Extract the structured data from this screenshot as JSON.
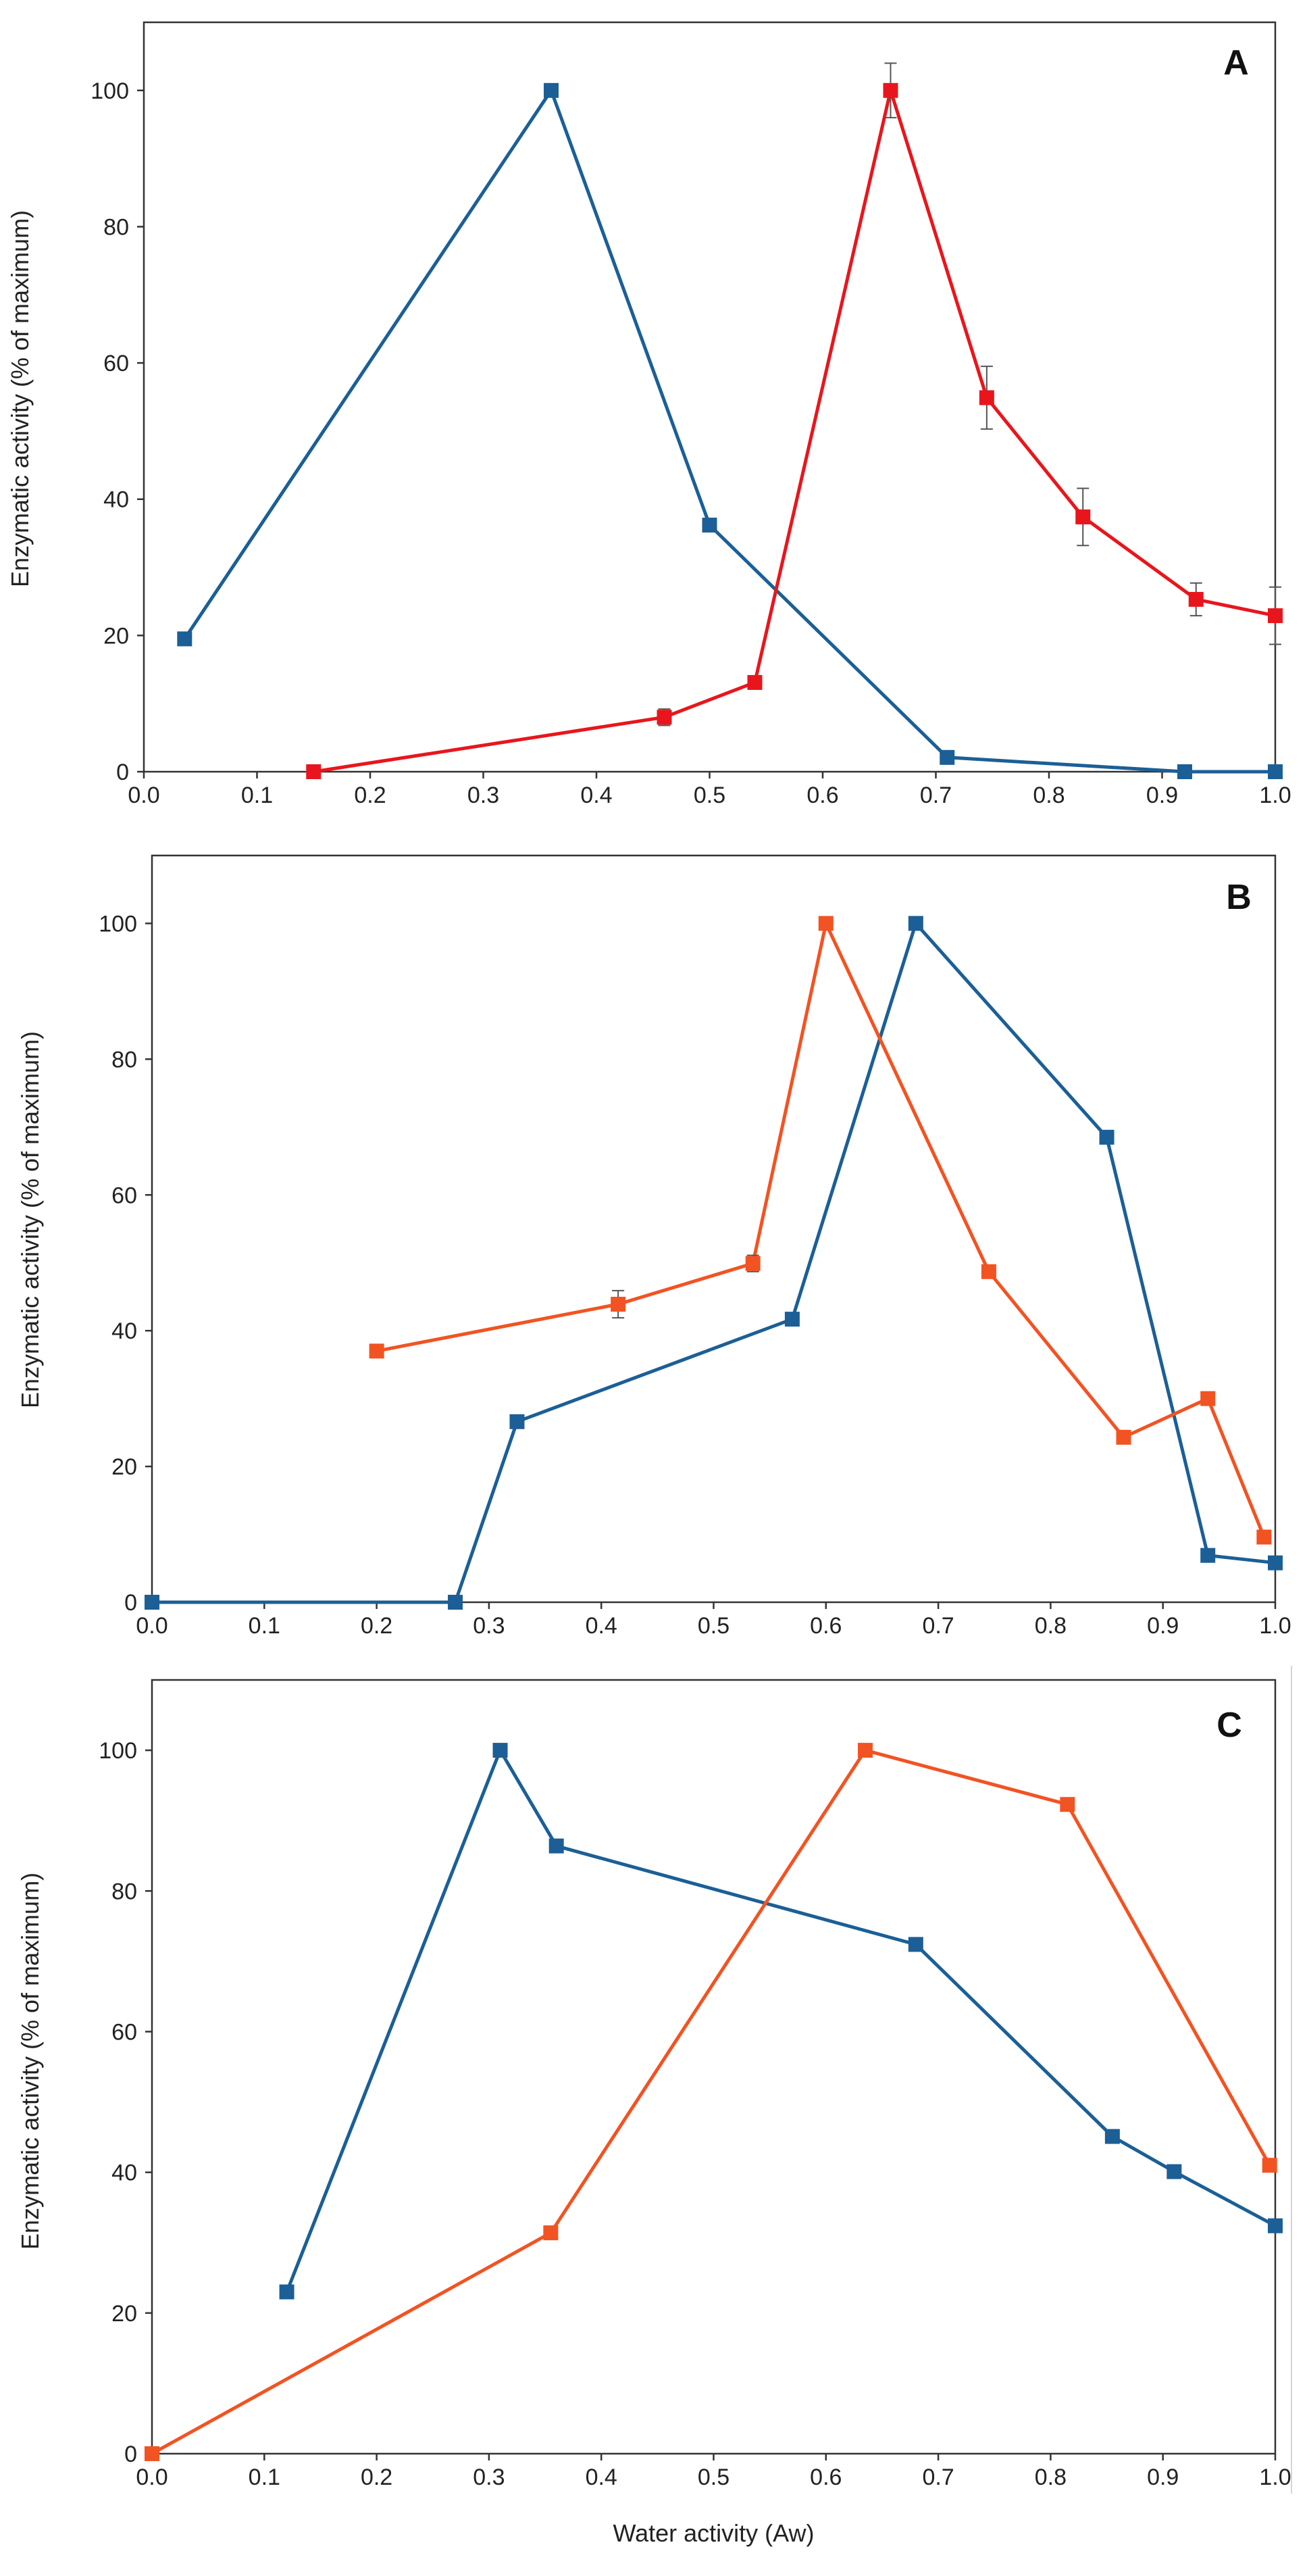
{
  "chart_data": [
    {
      "type": "line",
      "title": "A",
      "xlabel": "",
      "ylabel": "Enzymatic activity (% of maximum)",
      "xlim": [
        0.0,
        1.0
      ],
      "ylim": [
        0,
        110
      ],
      "xticks": [
        0.0,
        0.1,
        0.2,
        0.3,
        0.4,
        0.5,
        0.6,
        0.7,
        0.8,
        0.9,
        1.0
      ],
      "xtick_labels": [
        "0.0",
        "0.1",
        "0.2",
        "0.3",
        "0.4",
        "0.5",
        "0.6",
        "0.7",
        "0.8",
        "0.9",
        "1.0"
      ],
      "yticks": [
        0,
        20,
        40,
        60,
        80,
        100
      ],
      "ytick_labels": [
        "0",
        "20",
        "40",
        "60",
        "80",
        "100"
      ],
      "series": [
        {
          "name": "blue",
          "color": "#1b5f96",
          "x": [
            0.036,
            0.36,
            0.5,
            0.71,
            0.92,
            1.0
          ],
          "y": [
            19.5,
            100,
            36.2,
            2.1,
            0,
            0
          ],
          "err": [
            0,
            0,
            0,
            0,
            0,
            0
          ]
        },
        {
          "name": "red",
          "color": "#e8161c",
          "x": [
            0.15,
            0.46,
            0.54,
            0.66,
            0.745,
            0.83,
            0.93,
            1.0
          ],
          "y": [
            0,
            8.0,
            13.1,
            100,
            54.9,
            37.4,
            25.3,
            22.9
          ],
          "err": [
            0,
            1.2,
            0.8,
            4.0,
            4.6,
            4.2,
            2.4,
            4.2
          ]
        }
      ]
    },
    {
      "type": "line",
      "title": "B",
      "xlabel": "",
      "ylabel": "Enzymatic activity (% of maximum)",
      "xlim": [
        0.0,
        1.0
      ],
      "ylim": [
        0,
        110
      ],
      "xticks": [
        0.0,
        0.1,
        0.2,
        0.3,
        0.4,
        0.5,
        0.6,
        0.7,
        0.8,
        0.9,
        1.0
      ],
      "xtick_labels": [
        "0.0",
        "0.1",
        "0.2",
        "0.3",
        "0.4",
        "0.5",
        "0.6",
        "0.7",
        "0.8",
        "0.9",
        "1.0"
      ],
      "yticks": [
        0,
        20,
        40,
        60,
        80,
        100
      ],
      "ytick_labels": [
        "0",
        "20",
        "40",
        "60",
        "80",
        "100"
      ],
      "series": [
        {
          "name": "blue",
          "color": "#1b5f96",
          "x": [
            0.0,
            0.27,
            0.325,
            0.57,
            0.68,
            0.85,
            0.94,
            1.0
          ],
          "y": [
            0,
            0,
            26.6,
            41.7,
            100,
            68.5,
            6.9,
            5.8
          ],
          "err": [
            0,
            0,
            0,
            0,
            0,
            0,
            0,
            0
          ]
        },
        {
          "name": "orange",
          "color": "#f25322",
          "x": [
            0.2,
            0.415,
            0.535,
            0.6,
            0.745,
            0.865,
            0.94,
            0.99
          ],
          "y": [
            37.0,
            43.9,
            49.9,
            100,
            48.7,
            24.3,
            30.0,
            9.6
          ],
          "err": [
            0.8,
            2.0,
            1.2,
            0,
            0,
            0,
            0,
            0
          ]
        }
      ]
    },
    {
      "type": "line",
      "title": "C",
      "xlabel": "Water activity (Aw)",
      "ylabel": "Enzymatic activity (% of maximum)",
      "xlim": [
        0.0,
        1.0
      ],
      "ylim": [
        0,
        110
      ],
      "xticks": [
        0.0,
        0.1,
        0.2,
        0.3,
        0.4,
        0.5,
        0.6,
        0.7,
        0.8,
        0.9,
        1.0
      ],
      "xtick_labels": [
        "0.0",
        "0.1",
        "0.2",
        "0.3",
        "0.4",
        "0.5",
        "0.6",
        "0.7",
        "0.8",
        "0.9",
        "1.0"
      ],
      "yticks": [
        0,
        20,
        40,
        60,
        80,
        100
      ],
      "ytick_labels": [
        "0",
        "20",
        "40",
        "60",
        "80",
        "100"
      ],
      "series": [
        {
          "name": "blue",
          "color": "#1b5f96",
          "x": [
            0.12,
            0.31,
            0.36,
            0.68,
            0.855,
            0.91,
            1.0
          ],
          "y": [
            23.0,
            100,
            86.4,
            72.4,
            45.1,
            40.1,
            32.4
          ],
          "err": [
            0,
            0,
            0,
            0,
            0,
            0,
            0
          ]
        },
        {
          "name": "orange",
          "color": "#f25322",
          "x": [
            0.0,
            0.355,
            0.635,
            0.815,
            0.995
          ],
          "y": [
            0,
            31.4,
            100,
            92.3,
            41.0
          ],
          "err": [
            0,
            0,
            0,
            0,
            0
          ]
        }
      ]
    }
  ]
}
